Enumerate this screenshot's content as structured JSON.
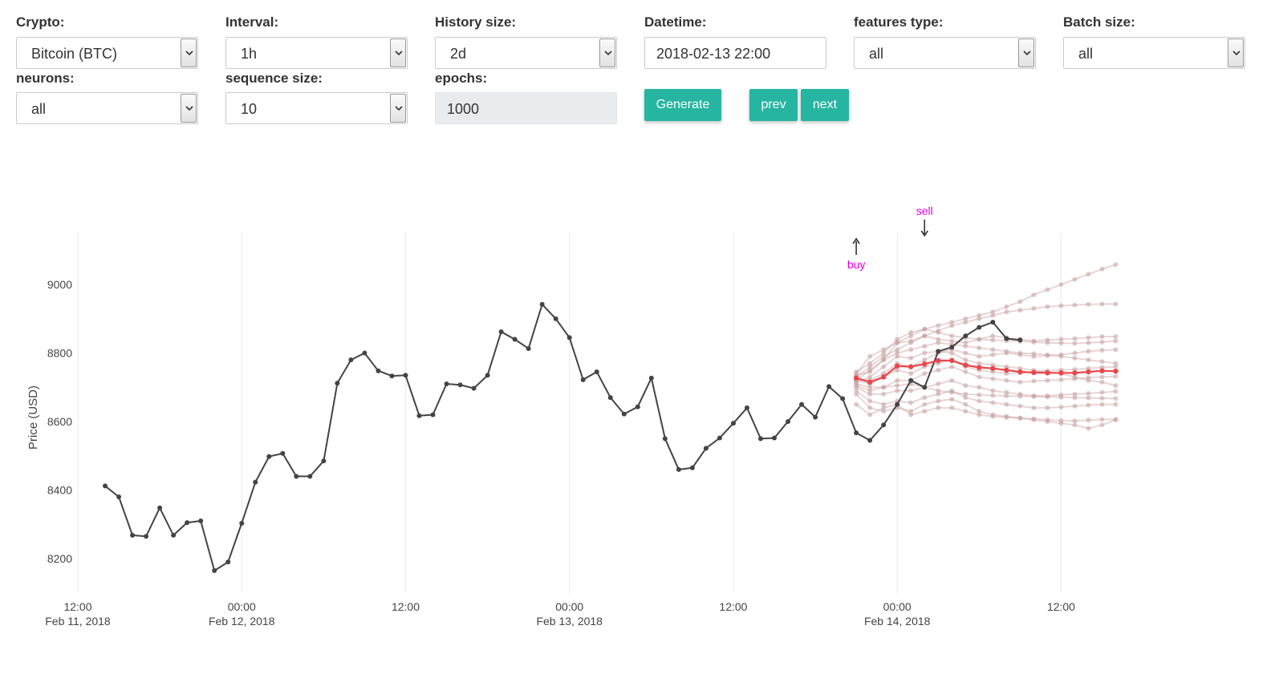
{
  "controls": {
    "crypto": {
      "label": "Crypto:",
      "value": "Bitcoin (BTC)"
    },
    "interval": {
      "label": "Interval:",
      "value": "1h"
    },
    "history": {
      "label": "History size:",
      "value": "2d"
    },
    "datetime": {
      "label": "Datetime:",
      "value": "2018-02-13 22:00"
    },
    "features": {
      "label": "features type:",
      "value": "all"
    },
    "batch": {
      "label": "Batch size:",
      "value": "all"
    },
    "neurons": {
      "label": "neurons:",
      "value": "all"
    },
    "sequence": {
      "label": "sequence size:",
      "value": "10"
    },
    "epochs": {
      "label": "epochs:",
      "value": "1000"
    },
    "generate_label": "Generate",
    "prev_label": "prev",
    "next_label": "next"
  },
  "colors": {
    "accent": "#26b5a0",
    "actual_line": "#444444",
    "mean_prediction": "#e8474a",
    "prediction_lines": "#c9a3a3",
    "annotation": "#e000e0"
  },
  "chart_data": {
    "type": "line",
    "ylabel": "Price (USD)",
    "ylim": [
      8110,
      9150
    ],
    "yticks": [
      8200,
      8400,
      8600,
      8800,
      9000
    ],
    "x_hours_range": [
      -2,
      22
    ],
    "x_ticks": [
      {
        "h": 0,
        "time": "12:00",
        "date": "Feb 11, 2018"
      },
      {
        "h": 12,
        "time": "00:00",
        "date": "Feb 12, 2018"
      },
      {
        "h": 24,
        "time": "12:00",
        "date": ""
      },
      {
        "h": 36,
        "time": "00:00",
        "date": "Feb 13, 2018"
      },
      {
        "h": 48,
        "time": "12:00",
        "date": ""
      },
      {
        "h": 60,
        "time": "00:00",
        "date": "Feb 14, 2018"
      },
      {
        "h": 72,
        "time": "12:00",
        "date": ""
      }
    ],
    "x_start": "2018-02-11 14:00",
    "x_step_hours": 0.5,
    "series": [
      {
        "values": [
          8412,
          8380,
          8268,
          8265,
          8348,
          8268,
          8305,
          8310,
          8165,
          8190,
          8303,
          8423,
          8498,
          8507,
          8440,
          8440,
          8485,
          8712,
          8780,
          8800,
          8748,
          8733,
          8735,
          8617,
          8620,
          8710,
          8707,
          8697,
          8735,
          8862,
          8840,
          8813,
          8942,
          8900,
          8845,
          8722,
          8745,
          8670,
          8622,
          8643,
          8727,
          8550,
          8460,
          8465,
          8522,
          8552,
          8595,
          8640,
          8550,
          8552,
          8600,
          8650,
          8613,
          8702,
          8667,
          8567,
          8545,
          8590,
          8650,
          8720,
          8700,
          8805,
          8817,
          8850,
          8875,
          8890,
          8842,
          8838
        ]
      }
    ],
    "prediction_start": "2018-02-13 22:00",
    "mean_prediction": [
      8727,
      8715,
      8730,
      8762,
      8760,
      8768,
      8778,
      8778,
      8765,
      8758,
      8755,
      8750,
      8745,
      8743,
      8742,
      8742,
      8742,
      8745,
      8748,
      8747
    ],
    "prediction_samples": [
      [
        8740,
        8790,
        8810,
        8830,
        8850,
        8870,
        8880,
        8890,
        8900,
        8910,
        8920,
        8935,
        8950,
        8970,
        8985,
        9000,
        9015,
        9030,
        9045,
        9058
      ],
      [
        8730,
        8760,
        8790,
        8810,
        8830,
        8850,
        8865,
        8880,
        8890,
        8900,
        8910,
        8920,
        8925,
        8930,
        8935,
        8938,
        8940,
        8942,
        8943,
        8943
      ],
      [
        8735,
        8745,
        8780,
        8830,
        8835,
        8850,
        8840,
        8835,
        8830,
        8840,
        8850,
        8845,
        8840,
        8835,
        8838,
        8840,
        8842,
        8845,
        8848,
        8848
      ],
      [
        8725,
        8720,
        8740,
        8770,
        8760,
        8780,
        8800,
        8810,
        8800,
        8790,
        8795,
        8800,
        8795,
        8790,
        8792,
        8795,
        8800,
        8805,
        8808,
        8810
      ],
      [
        8720,
        8710,
        8730,
        8750,
        8740,
        8760,
        8770,
        8780,
        8760,
        8750,
        8745,
        8740,
        8742,
        8745,
        8748,
        8750,
        8752,
        8755,
        8758,
        8760
      ],
      [
        8710,
        8700,
        8700,
        8720,
        8720,
        8740,
        8750,
        8760,
        8745,
        8730,
        8725,
        8720,
        8715,
        8718,
        8720,
        8722,
        8725,
        8728,
        8730,
        8732
      ],
      [
        8700,
        8680,
        8680,
        8690,
        8690,
        8700,
        8710,
        8720,
        8705,
        8700,
        8690,
        8685,
        8680,
        8675,
        8675,
        8678,
        8680,
        8682,
        8685,
        8688
      ],
      [
        8690,
        8660,
        8650,
        8660,
        8655,
        8670,
        8680,
        8690,
        8670,
        8660,
        8655,
        8650,
        8645,
        8640,
        8640,
        8642,
        8645,
        8648,
        8650,
        8650
      ],
      [
        8680,
        8640,
        8630,
        8640,
        8630,
        8650,
        8660,
        8665,
        8650,
        8630,
        8620,
        8615,
        8610,
        8608,
        8605,
        8603,
        8602,
        8604,
        8606,
        8606
      ],
      [
        8650,
        8620,
        8640,
        8650,
        8620,
        8630,
        8640,
        8640,
        8630,
        8620,
        8615,
        8612,
        8610,
        8605,
        8600,
        8595,
        8590,
        8580,
        8590,
        8605
      ],
      [
        8715,
        8730,
        8760,
        8790,
        8785,
        8800,
        8805,
        8800,
        8780,
        8770,
        8765,
        8760,
        8755,
        8750,
        8745,
        8740,
        8730,
        8720,
        8715,
        8705
      ],
      [
        8720,
        8750,
        8780,
        8800,
        8810,
        8820,
        8830,
        8825,
        8820,
        8815,
        8810,
        8805,
        8800,
        8798,
        8795,
        8790,
        8785,
        8780,
        8775,
        8770
      ],
      [
        8705,
        8690,
        8700,
        8705,
        8710,
        8700,
        8690,
        8685,
        8680,
        8678,
        8676,
        8675,
        8674,
        8673,
        8672,
        8671,
        8670,
        8669,
        8668,
        8667
      ],
      [
        8745,
        8770,
        8800,
        8840,
        8860,
        8870,
        8860,
        8850,
        8845,
        8840,
        8838,
        8836,
        8834,
        8832,
        8830,
        8829,
        8828,
        8830,
        8832,
        8835
      ]
    ],
    "annotations": [
      {
        "text": "buy",
        "arrow": "up",
        "x_index": 55
      },
      {
        "text": "sell",
        "arrow": "down",
        "x_index": 60
      }
    ]
  }
}
